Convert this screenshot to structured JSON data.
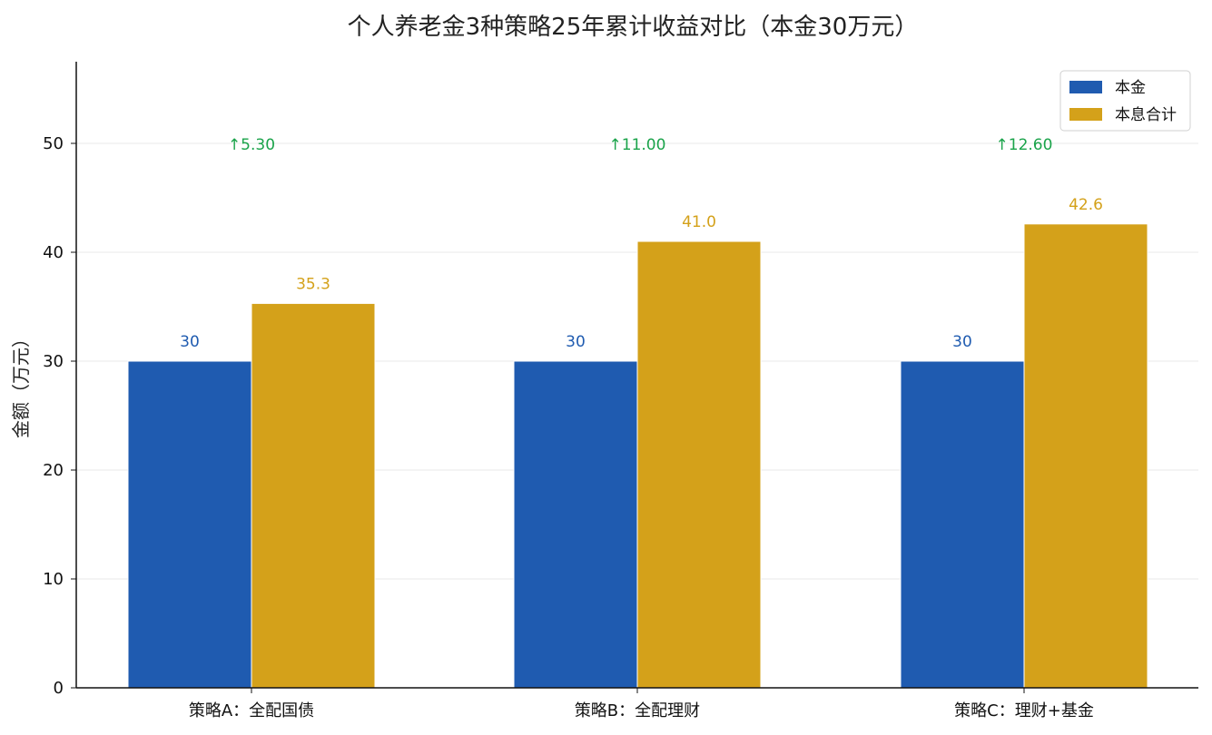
{
  "chart_data": {
    "type": "bar",
    "title": "个人养老金3种策略25年累计收益对比（本金30万元）",
    "xlabel": "",
    "ylabel": "金额（万元）",
    "categories": [
      "策略A：全配国债",
      "策略B：全配理财",
      "策略C：理财+基金"
    ],
    "series": [
      {
        "name": "本金",
        "values": [
          30,
          30,
          30
        ],
        "value_labels": [
          "30",
          "30",
          "30"
        ],
        "color": "#1f5bb0",
        "label_color": "#1f5bb0"
      },
      {
        "name": "本息合计",
        "values": [
          35.3,
          41.0,
          42.6
        ],
        "value_labels": [
          "35.3",
          "41.0",
          "42.6"
        ],
        "color": "#d4a11a",
        "label_color": "#d4a11a"
      }
    ],
    "gain_annotations": [
      "↑5.30",
      "↑11.00",
      "↑12.60"
    ],
    "gain_color": "#1aa34a",
    "ylim": [
      0,
      57.5
    ],
    "yticks": [
      0,
      10,
      20,
      30,
      40,
      50
    ],
    "grid": true,
    "legend_position": "top-right"
  }
}
